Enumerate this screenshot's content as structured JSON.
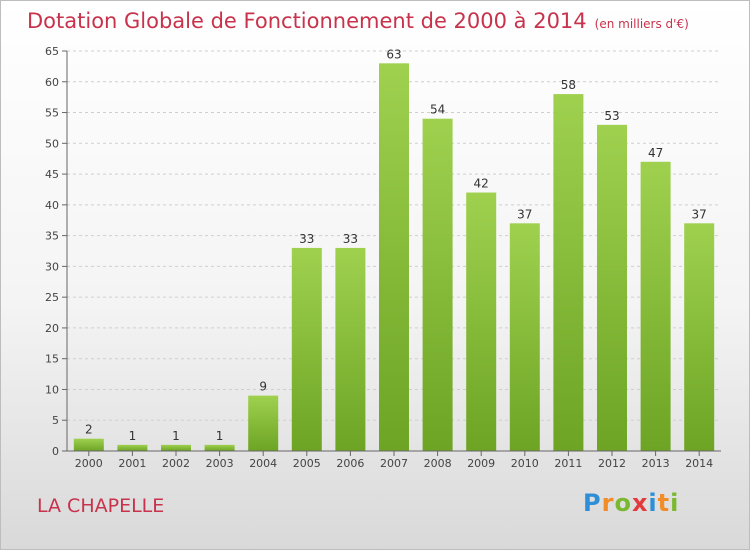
{
  "chart_data": {
    "type": "bar",
    "title": "Dotation Globale de Fonctionnement de 2000 à 2014",
    "subtitle": "(en milliers d'€)",
    "categories": [
      "2000",
      "2001",
      "2002",
      "2003",
      "2004",
      "2005",
      "2006",
      "2007",
      "2008",
      "2009",
      "2010",
      "2011",
      "2012",
      "2013",
      "2014"
    ],
    "values": [
      2,
      1,
      1,
      1,
      9,
      33,
      33,
      63,
      54,
      42,
      37,
      58,
      53,
      47,
      37
    ],
    "data_labels": [
      "2",
      "1",
      "1",
      "1",
      "9",
      "33",
      "33",
      "63",
      "54",
      "42",
      "37",
      "58",
      "53",
      "47",
      "37"
    ],
    "y_ticks": [
      "0",
      "5",
      "10",
      "15",
      "20",
      "25",
      "30",
      "35",
      "40",
      "45",
      "50",
      "55",
      "60",
      "65"
    ],
    "ylim": [
      0,
      65
    ],
    "grid": true,
    "bar_color": "#8cc43d"
  },
  "footer": {
    "town": "LA CHAPELLE",
    "logo": [
      "P",
      "r",
      "o",
      "x",
      "i",
      "t",
      "i"
    ],
    "logo_colors": [
      "#2e8fd6",
      "#f28c28",
      "#7ab82e",
      "#e23b3b",
      "#2e8fd6",
      "#f28c28",
      "#7ab82e"
    ]
  }
}
